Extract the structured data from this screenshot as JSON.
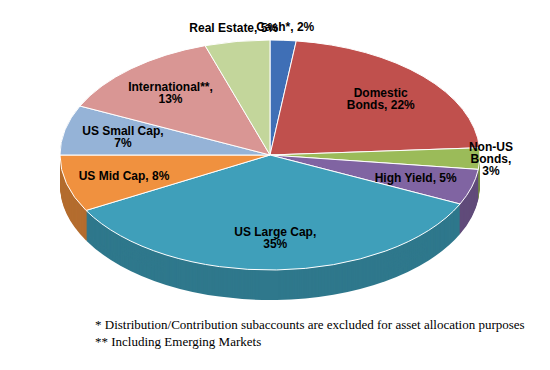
{
  "chart_data": {
    "type": "pie",
    "categories": [
      "Cash*",
      "Domestic Bonds",
      "Non-US Bonds",
      "High Yield",
      "US Large Cap",
      "US Mid Cap",
      "US Small Cap",
      "International**",
      "Real Estate"
    ],
    "values": [
      2,
      22,
      3,
      5,
      35,
      8,
      7,
      13,
      5
    ],
    "value_labels": [
      "Cash*, 2%",
      "Domestic Bonds, 22%",
      "Non-US Bonds, 3%",
      "High Yield, 5%",
      "US Large Cap, 35%",
      "US Mid Cap, 8%",
      "US Small Cap, 7%",
      "International**, 13%",
      "Real Estate, 5%"
    ],
    "colors": [
      "#3f6fb6",
      "#c0504d",
      "#9bbb59",
      "#8064a2",
      "#3f9fba",
      "#f0913f",
      "#95b3d7",
      "#d99694",
      "#c3d69b"
    ],
    "data_labels": true,
    "annotations": [
      "* Distribution/Contribution subaccounts are excluded for asset allocation purposes",
      "** Including Emerging Markets"
    ]
  }
}
